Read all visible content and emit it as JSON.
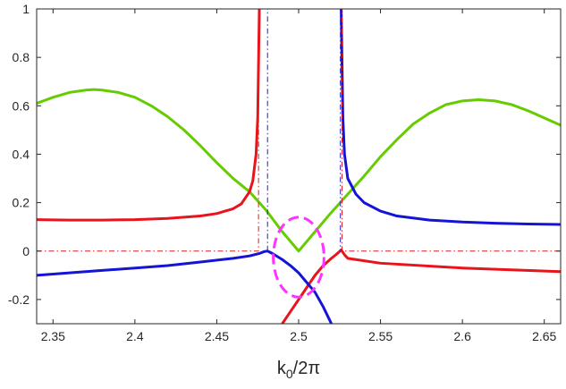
{
  "chart_data": {
    "type": "line",
    "title": "",
    "xlabel": "k_0/2π",
    "xlabel_parts": {
      "main": "k",
      "sub": "0",
      "rest": "/2π"
    },
    "ylabel": "",
    "xlim": [
      2.34,
      2.66
    ],
    "ylim": [
      -0.3,
      1.0
    ],
    "grid": false,
    "x_ticks": [
      2.35,
      2.4,
      2.45,
      2.5,
      2.55,
      2.6,
      2.65
    ],
    "x_tick_labels": [
      "2.35",
      "2.4",
      "2.45",
      "2.5",
      "2.55",
      "2.6",
      "2.65"
    ],
    "y_ticks": [
      -0.2,
      0,
      0.2,
      0.4,
      0.6,
      0.8,
      1
    ],
    "y_tick_labels": [
      "-0.2",
      "0",
      "0.2",
      "0.4",
      "0.6",
      "0.8",
      "1"
    ],
    "series": [
      {
        "color": "#66cc00",
        "style": "solid",
        "width": 3,
        "x": [
          2.34,
          2.35,
          2.36,
          2.37,
          2.375,
          2.38,
          2.39,
          2.4,
          2.41,
          2.42,
          2.43,
          2.44,
          2.45,
          2.46,
          2.47,
          2.48,
          2.49,
          2.495,
          2.5,
          2.505,
          2.51,
          2.52,
          2.53,
          2.54,
          2.55,
          2.56,
          2.57,
          2.58,
          2.59,
          2.6,
          2.61,
          2.62,
          2.63,
          2.64,
          2.65,
          2.66
        ],
        "y": [
          0.61,
          0.635,
          0.655,
          0.665,
          0.667,
          0.665,
          0.655,
          0.635,
          0.6,
          0.555,
          0.5,
          0.435,
          0.365,
          0.3,
          0.245,
          0.17,
          0.08,
          0.04,
          0.0,
          0.04,
          0.08,
          0.16,
          0.235,
          0.31,
          0.39,
          0.46,
          0.525,
          0.57,
          0.605,
          0.62,
          0.625,
          0.62,
          0.605,
          0.58,
          0.55,
          0.52
        ]
      },
      {
        "color": "#e8141b",
        "style": "solid",
        "width": 3,
        "x": [
          2.34,
          2.36,
          2.38,
          2.4,
          2.42,
          2.44,
          2.45,
          2.46,
          2.465,
          2.47,
          2.472,
          2.474,
          2.475,
          2.476
        ],
        "y": [
          0.13,
          0.128,
          0.128,
          0.13,
          0.135,
          0.145,
          0.155,
          0.175,
          0.195,
          0.245,
          0.29,
          0.4,
          0.55,
          1.0
        ]
      },
      {
        "color": "#e8141b",
        "style": "solid",
        "width": 3,
        "x": [
          2.49,
          2.495,
          2.5,
          2.505,
          2.51,
          2.515,
          2.52,
          2.524,
          2.526,
          2.528,
          2.53,
          2.54,
          2.55,
          2.6,
          2.66
        ],
        "y": [
          -0.3,
          -0.25,
          -0.2,
          -0.15,
          -0.1,
          -0.06,
          -0.03,
          -0.008,
          0.005,
          -0.015,
          -0.03,
          -0.04,
          -0.05,
          -0.07,
          -0.085
        ]
      },
      {
        "color": "#1414d7",
        "style": "solid",
        "width": 3,
        "x": [
          2.34,
          2.36,
          2.38,
          2.4,
          2.42,
          2.44,
          2.46,
          2.47,
          2.476,
          2.479,
          2.481,
          2.484,
          2.49,
          2.495,
          2.5,
          2.505,
          2.51,
          2.515,
          2.52
        ],
        "y": [
          -0.1,
          -0.09,
          -0.08,
          -0.07,
          -0.06,
          -0.045,
          -0.03,
          -0.02,
          -0.01,
          -0.002,
          0.0,
          -0.01,
          -0.035,
          -0.06,
          -0.09,
          -0.13,
          -0.17,
          -0.23,
          -0.3
        ]
      },
      {
        "color": "#1414d7",
        "style": "solid",
        "width": 3,
        "x": [
          2.526,
          2.527,
          2.528,
          2.53,
          2.535,
          2.54,
          2.55,
          2.56,
          2.58,
          2.6,
          2.62,
          2.64,
          2.66
        ],
        "y": [
          1.0,
          0.55,
          0.4,
          0.3,
          0.235,
          0.2,
          0.165,
          0.145,
          0.128,
          0.12,
          0.115,
          0.112,
          0.11
        ]
      },
      {
        "color": "#e31a1c",
        "style": "dashdot",
        "width": 1,
        "x": [
          2.34,
          2.4755,
          2.4755,
          2.5265,
          2.5265,
          2.66
        ],
        "y": [
          0,
          0,
          1,
          1,
          0,
          0
        ]
      },
      {
        "color": "#1f1fcf",
        "style": "dashdot",
        "width": 1,
        "x": [
          2.481,
          2.481,
          2.5255,
          2.5255
        ],
        "y": [
          0,
          1,
          1,
          0
        ]
      }
    ],
    "ellipse": {
      "color": "#ff33ff",
      "style": "dashed",
      "width": 3,
      "cx": 2.5,
      "cy": -0.025,
      "rx": 0.0155,
      "ry": 0.165
    }
  }
}
